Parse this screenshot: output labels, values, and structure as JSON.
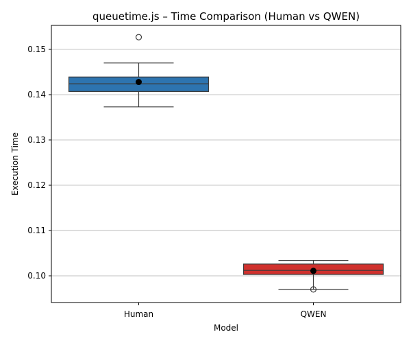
{
  "chart_data": {
    "type": "box",
    "title": "queuetime.js – Time Comparison (Human vs QWEN)",
    "xlabel": "Model",
    "ylabel": "Execution Time",
    "categories": [
      "Human",
      "QWEN"
    ],
    "ylim": [
      0.0941,
      0.1553
    ],
    "yticks": [
      0.1,
      0.11,
      0.12,
      0.13,
      0.14,
      0.15
    ],
    "ytick_labels": [
      "0.10",
      "0.11",
      "0.12",
      "0.13",
      "0.14",
      "0.15"
    ],
    "grid": "y-major",
    "series": [
      {
        "category": "Human",
        "color": "#2d74b0",
        "whisker_low": 0.1373,
        "q1": 0.1407,
        "median": 0.1424,
        "q3": 0.1439,
        "whisker_high": 0.147,
        "mean": 0.1428,
        "outliers": [
          0.1527
        ]
      },
      {
        "category": "QWEN",
        "color": "#d0312d",
        "whisker_low": 0.097,
        "q1": 0.1003,
        "median": 0.1012,
        "q3": 0.1026,
        "whisker_high": 0.1034,
        "mean": 0.1011,
        "outliers": [
          0.097
        ]
      }
    ]
  }
}
